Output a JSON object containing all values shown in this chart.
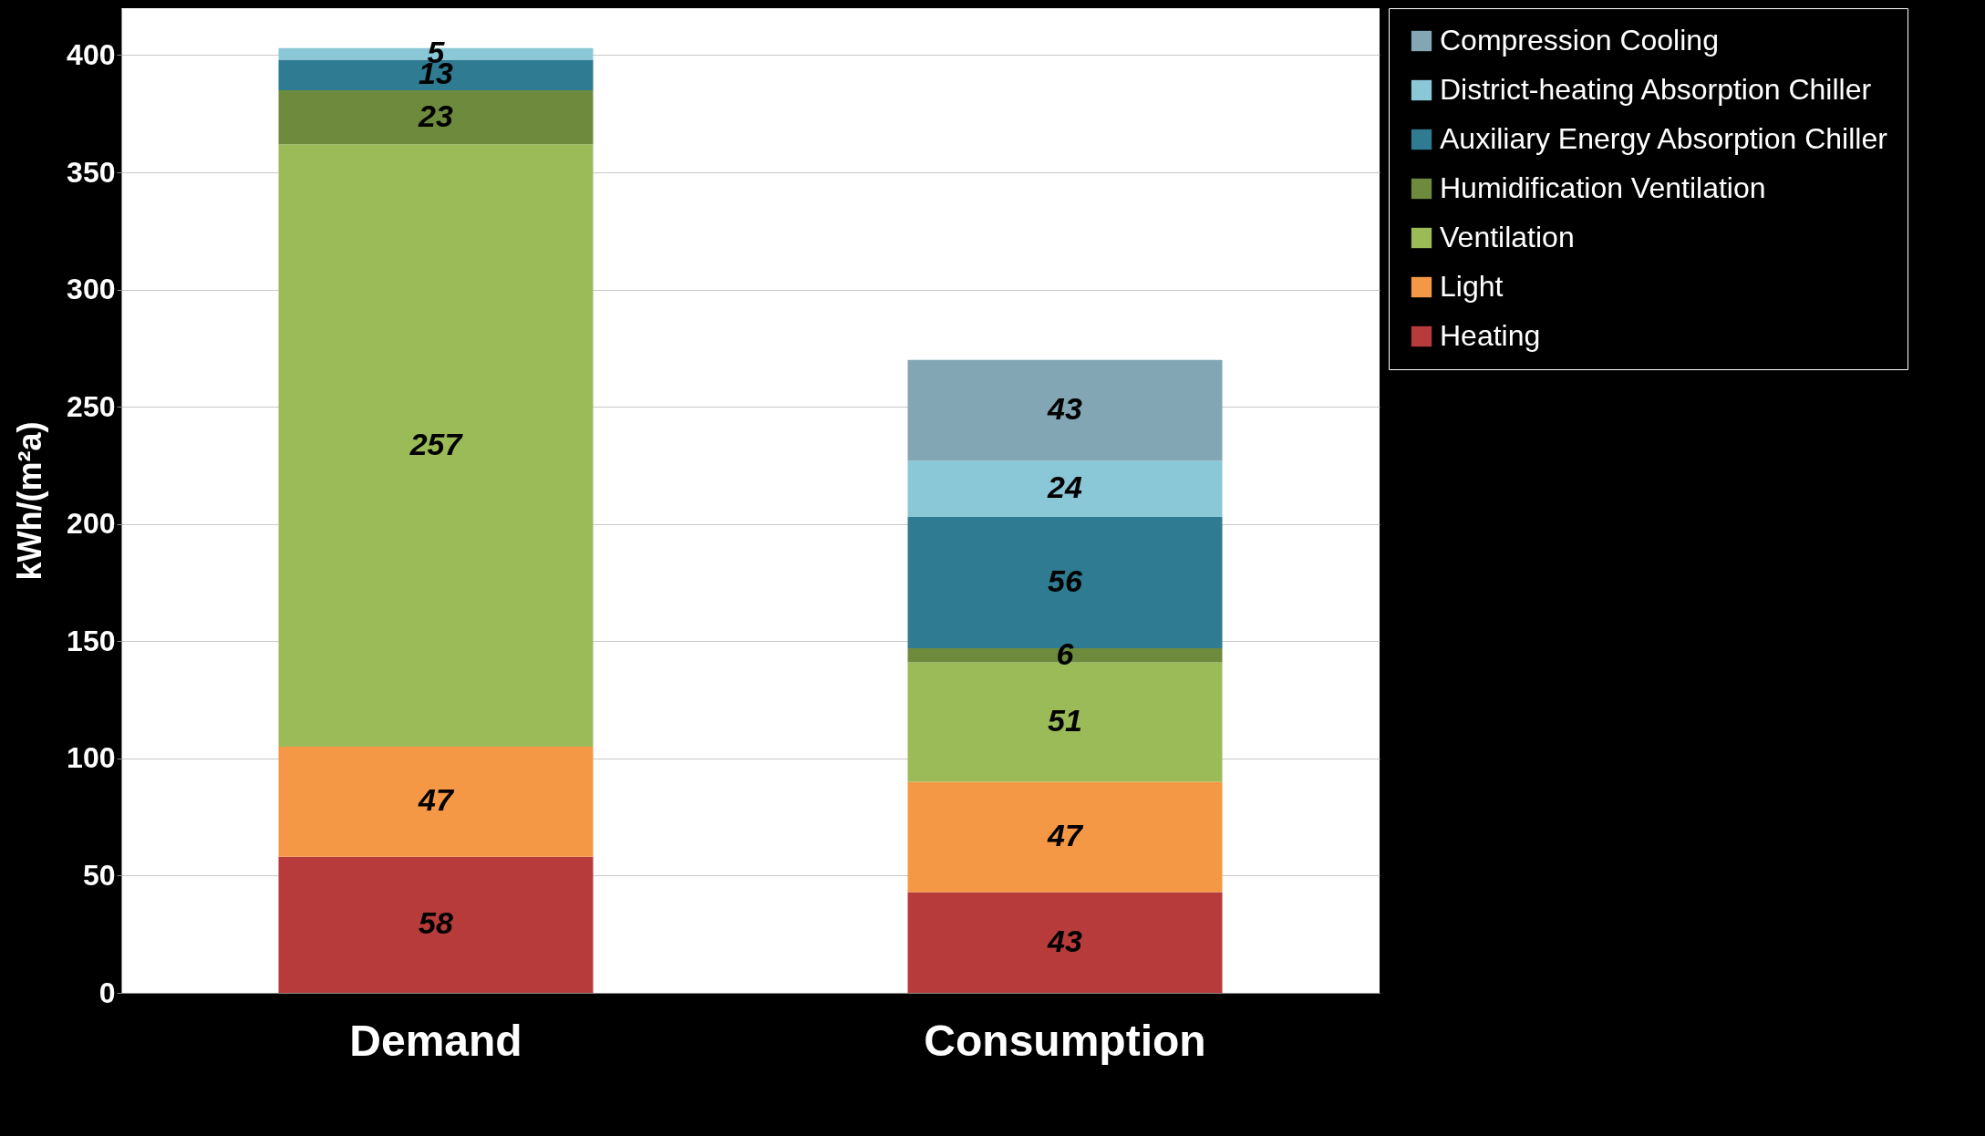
{
  "chart_data": {
    "type": "bar",
    "stacked": true,
    "ylabel": "kWh/(m²a)",
    "categories": [
      "Demand",
      "Consumption"
    ],
    "series": [
      {
        "name": "Heating",
        "color": "#b83b3b",
        "values": [
          58,
          43
        ]
      },
      {
        "name": "Light",
        "color": "#f59846",
        "values": [
          47,
          47
        ]
      },
      {
        "name": "Ventilation",
        "color": "#9bbb59",
        "values": [
          257,
          51
        ]
      },
      {
        "name": "Humidification Ventilation",
        "color": "#6e8b3d",
        "values": [
          23,
          6
        ]
      },
      {
        "name": "Auxiliary Energy Absorption Chiller",
        "color": "#2e7b92",
        "values": [
          13,
          56
        ]
      },
      {
        "name": "District-heating Absorption Chiller",
        "color": "#8ac7d7",
        "values": [
          5,
          24
        ]
      },
      {
        "name": "Compression Cooling",
        "color": "#82a6b4",
        "values": [
          null,
          43
        ]
      }
    ],
    "ylim": [
      0,
      420
    ],
    "yticks": [
      0,
      50,
      100,
      150,
      200,
      250,
      300,
      350,
      400
    ],
    "grid": "y",
    "data_labels": true,
    "legend": "right"
  }
}
